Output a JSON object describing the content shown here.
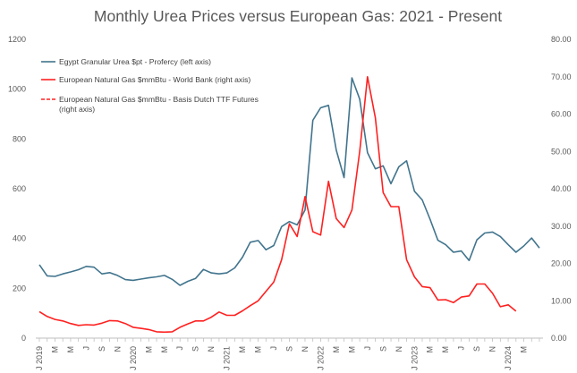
{
  "chart_data": {
    "type": "line",
    "title": "Monthly Urea Prices versus European Gas: 2021 - Present",
    "left_axis": {
      "ylim": [
        0,
        1200
      ],
      "ticks": [
        "0",
        "200",
        "400",
        "600",
        "800",
        "1000",
        "1200"
      ]
    },
    "right_axis": {
      "ylim": [
        0,
        80
      ],
      "ticks": [
        "0.00",
        "10.00",
        "20.00",
        "30.00",
        "40.00",
        "50.00",
        "60.00",
        "70.00",
        "80.00"
      ]
    },
    "x_tick_labels": [
      "J 2019",
      "M",
      "M",
      "J",
      "S",
      "N",
      "J 2020",
      "M",
      "M",
      "J",
      "S",
      "N",
      "J 2021",
      "M",
      "M",
      "J",
      "S",
      "N",
      "J 2022",
      "M",
      "M",
      "J",
      "S",
      "N",
      "J 2023",
      "M",
      "M",
      "J",
      "S",
      "N",
      "J 2024",
      "M"
    ],
    "legend_position": "upper-left",
    "grid": false,
    "series": [
      {
        "name": "Egypt Granular Urea $pt - Profercy (left axis)",
        "axis": "left",
        "color": "#41748D",
        "dash": "solid",
        "values": [
          295,
          250,
          248,
          258,
          266,
          275,
          288,
          285,
          258,
          263,
          252,
          235,
          232,
          237,
          242,
          246,
          252,
          236,
          212,
          228,
          240,
          276,
          262,
          258,
          262,
          282,
          325,
          385,
          392,
          355,
          372,
          448,
          468,
          455,
          515,
          875,
          925,
          935,
          755,
          645,
          1045,
          960,
          745,
          680,
          692,
          620,
          688,
          712,
          590,
          555,
          478,
          393,
          375,
          345,
          350,
          312,
          395,
          422,
          426,
          408,
          375,
          345,
          370,
          402,
          362
        ]
      },
      {
        "name": "European Natural Gas $mmBtu - World Bank (right axis)",
        "axis": "right",
        "color": "#FF2020",
        "dash": "solid",
        "values": [
          7.1,
          5.8,
          5.0,
          4.6,
          3.9,
          3.4,
          3.6,
          3.5,
          4.0,
          4.7,
          4.6,
          3.9,
          2.9,
          2.6,
          2.3,
          1.7,
          1.6,
          1.7,
          2.9,
          3.8,
          4.6,
          4.6,
          5.6,
          7.0,
          6.1,
          6.1,
          7.3,
          8.7,
          10.0,
          12.5,
          15.0,
          21.0,
          30.6,
          27.2,
          37.9,
          28.5,
          27.6,
          42.0,
          32.0,
          29.6,
          34.3,
          50.0,
          70.0,
          59.0,
          39.0,
          35.2,
          35.2,
          21.0,
          16.4,
          13.8,
          13.5,
          10.2,
          10.3,
          9.5,
          11.0,
          11.3,
          14.5,
          14.5,
          12.0,
          8.4,
          8.9,
          7.2
        ]
      },
      {
        "name": "European Natural Gas $mmBtu - Basis Dutch TTF Futures (right axis)",
        "axis": "right",
        "color": "#FF2020",
        "dash": "dashed",
        "values": []
      }
    ]
  }
}
